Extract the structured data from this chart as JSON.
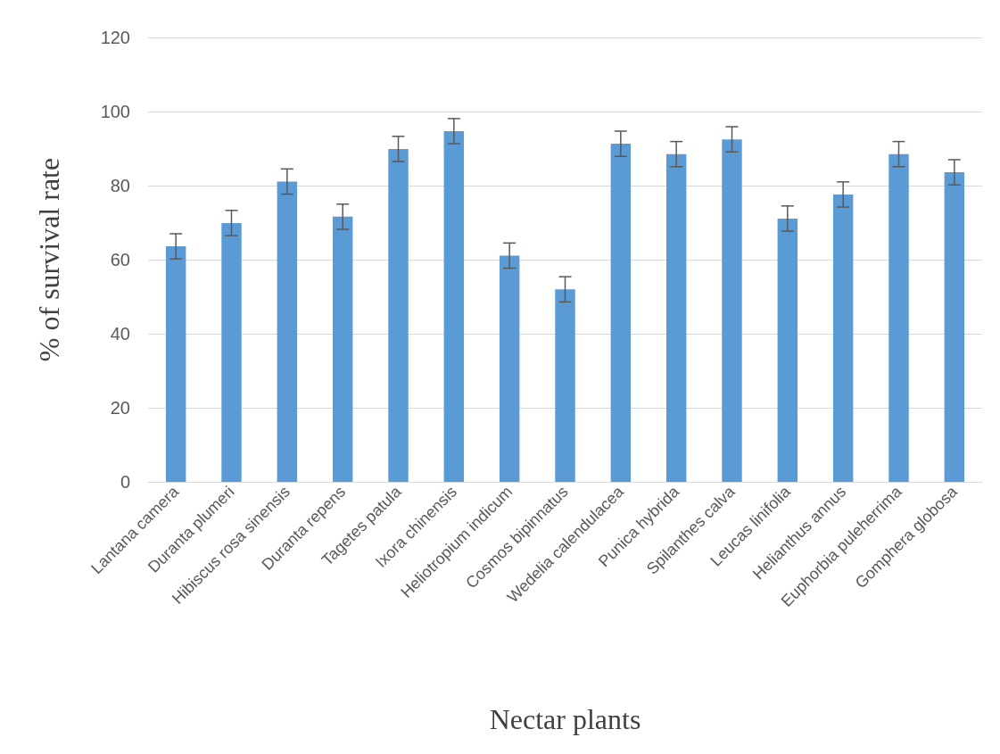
{
  "chart_data": {
    "type": "bar",
    "xlabel": "Nectar plants",
    "ylabel": "% of survival rate",
    "categories": [
      "Lantana camera",
      "Duranta plumeri",
      "Hibiscus rosa sinensis",
      "Duranta repens",
      "Tagetes patula",
      "Ixora chinensis",
      "Heliotropium indicum",
      "Cosmos bipinnatus",
      "Wedelia calendulacea",
      "Punica hybrida",
      "Spilanthes calva",
      "Leucas linifolia",
      "Helianthus annus",
      "Euphorbia puleherrima",
      "Gomphera globosa"
    ],
    "values": [
      63.6,
      69.9,
      81.1,
      71.6,
      89.9,
      94.7,
      61.1,
      52.0,
      91.3,
      88.5,
      92.5,
      71.1,
      77.6,
      88.5,
      83.6
    ],
    "errors": [
      3.4,
      3.4,
      3.4,
      3.4,
      3.4,
      3.4,
      3.4,
      3.4,
      3.4,
      3.4,
      3.4,
      3.4,
      3.4,
      3.4,
      3.4
    ],
    "color": "#5b9bd5",
    "ylim": [
      0,
      120
    ],
    "yticks": [
      0,
      20,
      40,
      60,
      80,
      100,
      120
    ],
    "grid": "y"
  }
}
